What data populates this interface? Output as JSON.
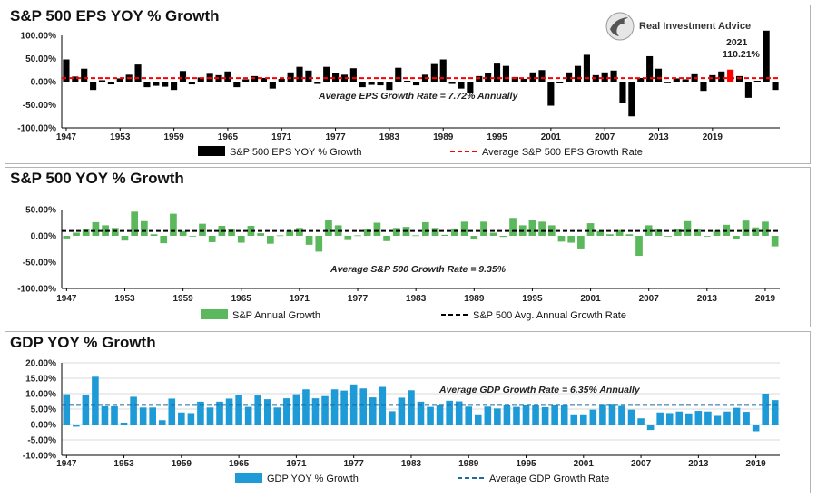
{
  "brand": "Real Investment Advice",
  "chart_data": [
    {
      "type": "bar",
      "title": "S&P 500 EPS YOY % Growth",
      "start_year": 1947,
      "ylim": [
        -100,
        100
      ],
      "yticks": [
        100,
        50,
        0,
        -50,
        -100
      ],
      "ytick_labels": [
        "100.00%",
        "50.00%",
        "0.00%",
        "-50.00%",
        "-100.00%"
      ],
      "xtick_labels": [
        "1947",
        "1953",
        "1959",
        "1965",
        "1971",
        "1977",
        "1983",
        "1989",
        "1995",
        "2001",
        "2007",
        "2013",
        "2019"
      ],
      "values": [
        48,
        11,
        28,
        -18,
        3,
        -6,
        7,
        15,
        37,
        -12,
        -9,
        -11,
        -18,
        23,
        -6,
        9,
        17,
        14,
        22,
        -12,
        5,
        12,
        8,
        -15,
        6,
        20,
        32,
        24,
        -5,
        32,
        19,
        15,
        29,
        -12,
        -7,
        -8,
        -18,
        30,
        2,
        -8,
        15,
        38,
        48,
        -5,
        -15,
        -25,
        12,
        18,
        39,
        34,
        10,
        6,
        20,
        25,
        -52,
        -2,
        20,
        34,
        58,
        14,
        20,
        24,
        -46,
        -75,
        8,
        55,
        28,
        -1,
        7,
        5,
        16,
        -20,
        14,
        22,
        26,
        12,
        -35,
        2,
        110.21,
        -18
      ],
      "bar_color": "#000000",
      "highlight_color": "#ff0000",
      "highlight_year": 2021,
      "average": 7.72,
      "annotation": "Average EPS Growth Rate = 7.72% Annually",
      "callout_year": "2021",
      "callout_value": "110.21%",
      "legend": [
        "S&P 500 EPS YOY % Growth",
        "Average S&P 500 EPS Growth Rate"
      ],
      "average_line_color": "#ff0000",
      "grid": false
    },
    {
      "type": "bar",
      "title": "S&P 500 YOY % Growth",
      "start_year": 1947,
      "ylim": [
        -100,
        50
      ],
      "yticks": [
        50,
        0,
        -50,
        -100
      ],
      "ytick_labels": [
        "50.00%",
        "0.00%",
        "-50.00%",
        "-100.00%"
      ],
      "xtick_labels": [
        "1947",
        "1953",
        "1959",
        "1965",
        "1971",
        "1977",
        "1983",
        "1989",
        "1995",
        "2001",
        "2007",
        "2013",
        "2019"
      ],
      "values": [
        -5,
        6,
        12,
        26,
        20,
        15,
        -9,
        46,
        28,
        3,
        -14,
        42,
        9,
        0,
        23,
        -12,
        19,
        12,
        -13,
        19,
        5,
        -15,
        1,
        10,
        15,
        -17,
        -30,
        30,
        20,
        -8,
        1,
        12,
        25,
        -10,
        15,
        17,
        1,
        26,
        15,
        2,
        14,
        27,
        -7,
        27,
        6,
        -2,
        34,
        20,
        31,
        27,
        20,
        -11,
        -13,
        -24,
        24,
        9,
        3,
        11,
        3,
        -38,
        20,
        13,
        0,
        13,
        28,
        12,
        -1,
        10,
        21,
        -6,
        29,
        16,
        27,
        -20
      ],
      "bar_color": "#5cb85c",
      "average": 9.35,
      "annotation": "Average S&P 500 Growth Rate = 9.35%",
      "legend": [
        "S&P Annual Growth",
        "S&P 500 Avg. Annual Growth Rate"
      ],
      "average_line_color": "#000000",
      "grid": false
    },
    {
      "type": "bar",
      "title": "GDP YOY % Growth",
      "start_year": 1947,
      "ylim": [
        -10,
        20
      ],
      "yticks": [
        20,
        15,
        10,
        5,
        0,
        -5,
        -10
      ],
      "ytick_labels": [
        "20.00%",
        "15.00%",
        "10.00%",
        "5.00%",
        "0.00%",
        "-5.00%",
        "-10.00%"
      ],
      "xtick_labels": [
        "1947",
        "1953",
        "1959",
        "1965",
        "1971",
        "1977",
        "1983",
        "1989",
        "1995",
        "2001",
        "2007",
        "2013",
        "2019"
      ],
      "values": [
        9.8,
        -0.7,
        9.7,
        15.5,
        5.9,
        5.9,
        0.6,
        9.0,
        5.5,
        5.5,
        1.4,
        8.4,
        3.9,
        3.7,
        7.4,
        5.5,
        7.4,
        8.4,
        9.5,
        5.7,
        9.4,
        8.2,
        5.5,
        8.5,
        9.8,
        11.4,
        8.5,
        9.2,
        11.4,
        11.0,
        13.0,
        11.7,
        8.8,
        12.2,
        4.3,
        8.7,
        11.1,
        7.4,
        5.7,
        6.3,
        7.7,
        7.5,
        5.8,
        3.3,
        5.8,
        5.2,
        6.2,
        5.7,
        6.3,
        6.3,
        5.6,
        6.3,
        6.3,
        3.3,
        3.3,
        4.8,
        6.6,
        6.7,
        6.0,
        4.8,
        2.0,
        -1.8,
        3.9,
        3.7,
        4.2,
        3.6,
        4.4,
        4.2,
        2.8,
        4.2,
        5.4,
        4.1,
        -2.2,
        10.0,
        7.9
      ],
      "bar_color": "#1e9bd7",
      "average": 6.35,
      "annotation": "Average GDP Growth Rate = 6.35% Annually",
      "legend": [
        "GDP YOY % Growth",
        "Average GDP Growth Rate"
      ],
      "average_line_color": "#1f6b9e",
      "grid": true
    }
  ]
}
